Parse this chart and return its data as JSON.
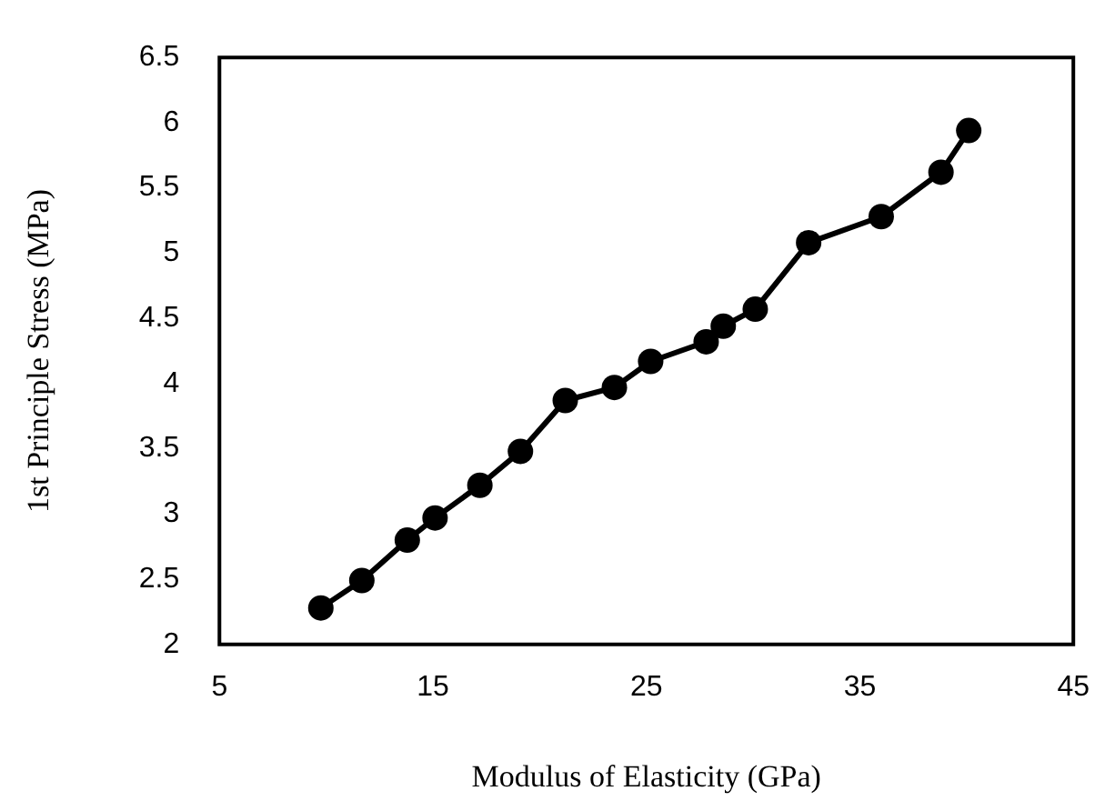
{
  "chart_data": {
    "type": "line",
    "xlabel": "Modulus of Elasticity (GPa)",
    "ylabel": "1st Principle Stress (MPa)",
    "x": [
      9.75,
      11.67,
      13.8,
      15.1,
      17.2,
      19.1,
      21.2,
      23.5,
      25.2,
      27.8,
      28.6,
      30.1,
      32.6,
      36.0,
      38.8,
      40.1
    ],
    "series": [
      {
        "color": "#000000",
        "values": [
          2.28,
          2.49,
          2.8,
          2.97,
          3.22,
          3.48,
          3.87,
          3.97,
          4.17,
          4.32,
          4.44,
          4.57,
          5.08,
          5.28,
          5.62,
          5.94
        ]
      }
    ],
    "xlim": [
      5,
      45
    ],
    "xticks": [
      5,
      15,
      25,
      35,
      45
    ],
    "ylim": [
      2,
      6.5
    ],
    "yticks": [
      2,
      2.5,
      3,
      3.5,
      4,
      4.5,
      5,
      5.5,
      6,
      6.5
    ],
    "grid": false,
    "legend": false,
    "marker": "circle",
    "line_style": "solid"
  }
}
